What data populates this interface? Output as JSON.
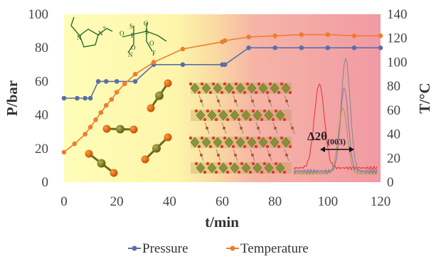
{
  "chart_data": {
    "type": "line",
    "xlabel": "t/min",
    "ylabel": "P/bar",
    "y2label": "T/°C",
    "xlim": [
      0,
      120
    ],
    "ylim": [
      0,
      100
    ],
    "y2lim": [
      0,
      140
    ],
    "xticks": [
      "0",
      "20",
      "40",
      "60",
      "80",
      "100",
      "120"
    ],
    "yticks": [
      "0",
      "20",
      "40",
      "60",
      "80",
      "100"
    ],
    "y2ticks": [
      "0",
      "20",
      "40",
      "60",
      "80",
      "100",
      "120",
      "140"
    ],
    "legend_position": "bottom",
    "series": [
      {
        "name": "Pressure",
        "axis": "left",
        "color": "#5a6fa8",
        "x": [
          0,
          5,
          8,
          10,
          13,
          16,
          20,
          27,
          34,
          45,
          60,
          61,
          70,
          80,
          90,
          100,
          110,
          120
        ],
        "y": [
          50,
          50,
          50,
          50,
          60,
          60,
          60,
          60,
          70,
          70,
          70,
          70,
          80,
          80,
          80,
          80,
          80,
          80
        ]
      },
      {
        "name": "Temperature",
        "axis": "right",
        "color": "#ee7d31",
        "x": [
          0,
          4,
          8,
          10,
          12,
          14,
          16,
          18,
          20,
          23,
          27,
          34,
          45,
          60,
          61,
          70,
          80,
          90,
          100,
          110,
          120
        ],
        "y": [
          25,
          32,
          40,
          46,
          52,
          58,
          64,
          69,
          75,
          82,
          90,
          100,
          111,
          117,
          118,
          121,
          122,
          123,
          123,
          122,
          122
        ]
      }
    ]
  },
  "annotations": {
    "diffraction_label_main": "Δ2θ",
    "diffraction_label_sub": "(003)",
    "ionic_liquid_atoms": [
      "N",
      "N",
      "+",
      "N",
      "F",
      "F",
      "S",
      "S",
      "O",
      "O",
      "O",
      "O",
      "−"
    ]
  },
  "colors": {
    "background_gradient": [
      "#fffdb8",
      "#fbe5a0",
      "#f7bba4",
      "#f19aa4"
    ],
    "molecule_dark": "#6b6b1e",
    "molecule_oxygen": "#dd5a00",
    "xrd_red": "#e83a3a",
    "xrd_purple": "#8a7ab0",
    "xrd_grey": "#8a8a8a"
  }
}
